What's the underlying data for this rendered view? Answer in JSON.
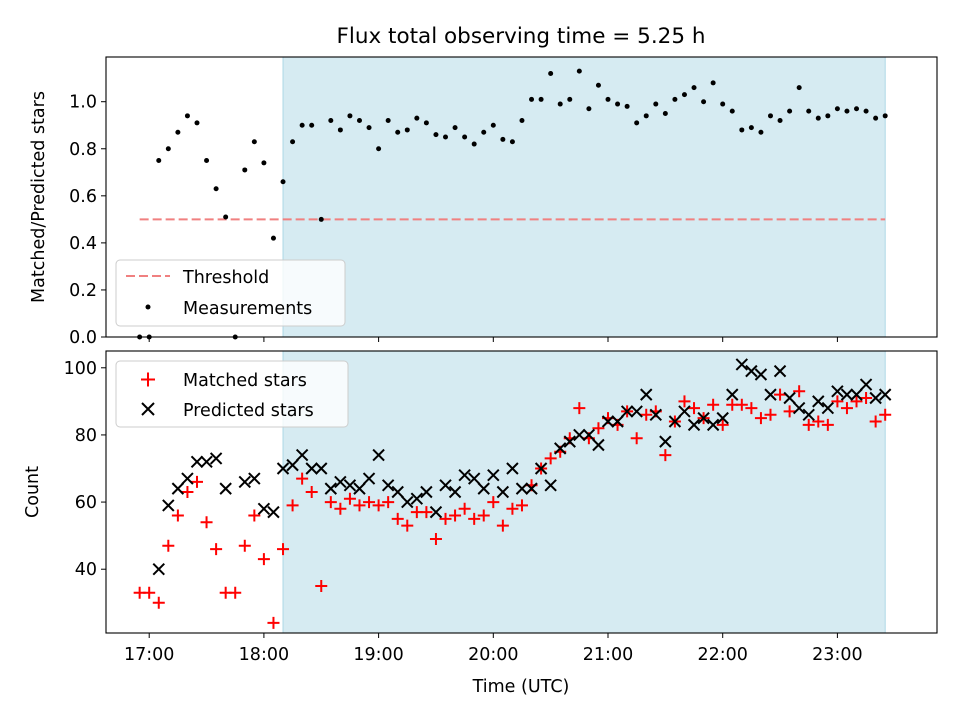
{
  "figure": {
    "title": "Flux total observing time = 5.25 h",
    "xlabel": "Time (UTC)",
    "x_ticks": [
      "17:00",
      "18:00",
      "19:00",
      "20:00",
      "21:00",
      "22:00",
      "23:00"
    ],
    "observing_window": [
      "18:10",
      "23:25"
    ],
    "colors": {
      "window": "#add8e6",
      "threshold": "#f08080",
      "measurements": "#000000",
      "matched": "#ff0000",
      "predicted": "#000000"
    }
  },
  "chart_data": [
    {
      "type": "scatter",
      "ylabel": "Matched/Predicted stars",
      "ylim": [
        0,
        1.19
      ],
      "y_ticks": [
        "0.0",
        "0.2",
        "0.4",
        "0.6",
        "0.8",
        "1.0"
      ],
      "legend_position": "lower-left",
      "threshold": {
        "name": "Threshold",
        "value": 0.5,
        "x_range": [
          "16:55",
          "23:25"
        ]
      },
      "series": [
        {
          "name": "Measurements",
          "points": [
            [
              "16:55",
              0.0
            ],
            [
              "17:00",
              0.0
            ],
            [
              "17:05",
              0.75
            ],
            [
              "17:10",
              0.8
            ],
            [
              "17:15",
              0.87
            ],
            [
              "17:20",
              0.94
            ],
            [
              "17:25",
              0.91
            ],
            [
              "17:30",
              0.75
            ],
            [
              "17:35",
              0.63
            ],
            [
              "17:40",
              0.51
            ],
            [
              "17:45",
              0.0
            ],
            [
              "17:50",
              0.71
            ],
            [
              "17:55",
              0.83
            ],
            [
              "18:00",
              0.74
            ],
            [
              "18:05",
              0.42
            ],
            [
              "18:10",
              0.66
            ],
            [
              "18:15",
              0.83
            ],
            [
              "18:20",
              0.9
            ],
            [
              "18:25",
              0.9
            ],
            [
              "18:30",
              0.5
            ],
            [
              "18:35",
              0.92
            ],
            [
              "18:40",
              0.88
            ],
            [
              "18:45",
              0.94
            ],
            [
              "18:50",
              0.92
            ],
            [
              "18:55",
              0.89
            ],
            [
              "19:00",
              0.8
            ],
            [
              "19:05",
              0.92
            ],
            [
              "19:10",
              0.87
            ],
            [
              "19:15",
              0.88
            ],
            [
              "19:20",
              0.93
            ],
            [
              "19:25",
              0.91
            ],
            [
              "19:30",
              0.86
            ],
            [
              "19:35",
              0.85
            ],
            [
              "19:40",
              0.89
            ],
            [
              "19:45",
              0.85
            ],
            [
              "19:50",
              0.82
            ],
            [
              "19:55",
              0.87
            ],
            [
              "20:00",
              0.9
            ],
            [
              "20:05",
              0.84
            ],
            [
              "20:10",
              0.83
            ],
            [
              "20:15",
              0.92
            ],
            [
              "20:20",
              1.01
            ],
            [
              "20:25",
              1.01
            ],
            [
              "20:30",
              1.12
            ],
            [
              "20:35",
              0.99
            ],
            [
              "20:40",
              1.01
            ],
            [
              "20:45",
              1.13
            ],
            [
              "20:50",
              0.97
            ],
            [
              "20:55",
              1.07
            ],
            [
              "21:00",
              1.01
            ],
            [
              "21:05",
              0.99
            ],
            [
              "21:10",
              0.98
            ],
            [
              "21:15",
              0.91
            ],
            [
              "21:20",
              0.94
            ],
            [
              "21:25",
              0.99
            ],
            [
              "21:30",
              0.95
            ],
            [
              "21:35",
              1.01
            ],
            [
              "21:40",
              1.03
            ],
            [
              "21:45",
              1.06
            ],
            [
              "21:50",
              1.0
            ],
            [
              "21:55",
              1.08
            ],
            [
              "22:00",
              0.99
            ],
            [
              "22:05",
              0.96
            ],
            [
              "22:10",
              0.88
            ],
            [
              "22:15",
              0.89
            ],
            [
              "22:20",
              0.87
            ],
            [
              "22:25",
              0.94
            ],
            [
              "22:30",
              0.92
            ],
            [
              "22:35",
              0.96
            ],
            [
              "22:40",
              1.06
            ],
            [
              "22:45",
              0.96
            ],
            [
              "22:50",
              0.93
            ],
            [
              "22:55",
              0.94
            ],
            [
              "23:00",
              0.97
            ],
            [
              "23:05",
              0.96
            ],
            [
              "23:10",
              0.97
            ],
            [
              "23:15",
              0.96
            ],
            [
              "23:20",
              0.93
            ],
            [
              "23:25",
              0.94
            ]
          ]
        }
      ]
    },
    {
      "type": "scatter",
      "ylabel": "Count",
      "ylim": [
        21,
        105
      ],
      "y_ticks": [
        "40",
        "60",
        "80",
        "100"
      ],
      "legend_position": "upper-left",
      "series": [
        {
          "name": "Matched stars",
          "marker": "plus",
          "points": [
            [
              "16:55",
              33
            ],
            [
              "17:00",
              33
            ],
            [
              "17:05",
              30
            ],
            [
              "17:10",
              47
            ],
            [
              "17:15",
              56
            ],
            [
              "17:20",
              63
            ],
            [
              "17:25",
              66
            ],
            [
              "17:30",
              54
            ],
            [
              "17:35",
              46
            ],
            [
              "17:40",
              33
            ],
            [
              "17:45",
              33
            ],
            [
              "17:50",
              47
            ],
            [
              "17:55",
              56
            ],
            [
              "18:00",
              43
            ],
            [
              "18:05",
              24
            ],
            [
              "18:10",
              46
            ],
            [
              "18:15",
              59
            ],
            [
              "18:20",
              67
            ],
            [
              "18:25",
              63
            ],
            [
              "18:30",
              35
            ],
            [
              "18:35",
              60
            ],
            [
              "18:40",
              58
            ],
            [
              "18:45",
              61
            ],
            [
              "18:50",
              59
            ],
            [
              "18:55",
              60
            ],
            [
              "19:00",
              59
            ],
            [
              "19:05",
              60
            ],
            [
              "19:10",
              55
            ],
            [
              "19:15",
              53
            ],
            [
              "19:20",
              57
            ],
            [
              "19:25",
              57
            ],
            [
              "19:30",
              49
            ],
            [
              "19:35",
              55
            ],
            [
              "19:40",
              56
            ],
            [
              "19:45",
              58
            ],
            [
              "19:50",
              55
            ],
            [
              "19:55",
              56
            ],
            [
              "20:00",
              60
            ],
            [
              "20:05",
              53
            ],
            [
              "20:10",
              58
            ],
            [
              "20:15",
              59
            ],
            [
              "20:20",
              65
            ],
            [
              "20:25",
              70
            ],
            [
              "20:30",
              73
            ],
            [
              "20:35",
              75
            ],
            [
              "20:40",
              79
            ],
            [
              "20:45",
              88
            ],
            [
              "20:50",
              79
            ],
            [
              "20:55",
              82
            ],
            [
              "21:00",
              85
            ],
            [
              "21:05",
              83
            ],
            [
              "21:10",
              87
            ],
            [
              "21:15",
              79
            ],
            [
              "21:20",
              86
            ],
            [
              "21:25",
              87
            ],
            [
              "21:30",
              74
            ],
            [
              "21:35",
              84
            ],
            [
              "21:40",
              90
            ],
            [
              "21:45",
              88
            ],
            [
              "21:50",
              85
            ],
            [
              "21:55",
              89
            ],
            [
              "22:00",
              83
            ],
            [
              "22:05",
              89
            ],
            [
              "22:10",
              89
            ],
            [
              "22:15",
              88
            ],
            [
              "22:20",
              85
            ],
            [
              "22:25",
              86
            ],
            [
              "22:30",
              92
            ],
            [
              "22:35",
              87
            ],
            [
              "22:40",
              93
            ],
            [
              "22:45",
              83
            ],
            [
              "22:50",
              84
            ],
            [
              "22:55",
              83
            ],
            [
              "23:00",
              90
            ],
            [
              "23:05",
              88
            ],
            [
              "23:10",
              90
            ],
            [
              "23:15",
              91
            ],
            [
              "23:20",
              84
            ],
            [
              "23:25",
              86
            ]
          ]
        },
        {
          "name": "Predicted stars",
          "marker": "x",
          "points": [
            [
              "17:05",
              40
            ],
            [
              "17:10",
              59
            ],
            [
              "17:15",
              64
            ],
            [
              "17:20",
              67
            ],
            [
              "17:25",
              72
            ],
            [
              "17:30",
              72
            ],
            [
              "17:35",
              73
            ],
            [
              "17:40",
              64
            ],
            [
              "17:50",
              66
            ],
            [
              "17:55",
              67
            ],
            [
              "18:00",
              58
            ],
            [
              "18:05",
              57
            ],
            [
              "18:10",
              70
            ],
            [
              "18:15",
              71
            ],
            [
              "18:20",
              74
            ],
            [
              "18:25",
              70
            ],
            [
              "18:30",
              70
            ],
            [
              "18:35",
              64
            ],
            [
              "18:40",
              66
            ],
            [
              "18:45",
              65
            ],
            [
              "18:50",
              64
            ],
            [
              "18:55",
              67
            ],
            [
              "19:00",
              74
            ],
            [
              "19:05",
              65
            ],
            [
              "19:10",
              63
            ],
            [
              "19:15",
              60
            ],
            [
              "19:20",
              61
            ],
            [
              "19:25",
              63
            ],
            [
              "19:30",
              57
            ],
            [
              "19:35",
              65
            ],
            [
              "19:40",
              63
            ],
            [
              "19:45",
              68
            ],
            [
              "19:50",
              67
            ],
            [
              "19:55",
              64
            ],
            [
              "20:00",
              68
            ],
            [
              "20:05",
              63
            ],
            [
              "20:10",
              70
            ],
            [
              "20:15",
              64
            ],
            [
              "20:20",
              64
            ],
            [
              "20:25",
              70
            ],
            [
              "20:30",
              65
            ],
            [
              "20:35",
              76
            ],
            [
              "20:40",
              78
            ],
            [
              "20:45",
              80
            ],
            [
              "20:50",
              80
            ],
            [
              "20:55",
              77
            ],
            [
              "21:00",
              84
            ],
            [
              "21:05",
              84
            ],
            [
              "21:10",
              87
            ],
            [
              "21:15",
              87
            ],
            [
              "21:20",
              92
            ],
            [
              "21:25",
              86
            ],
            [
              "21:30",
              78
            ],
            [
              "21:35",
              84
            ],
            [
              "21:40",
              87
            ],
            [
              "21:45",
              83
            ],
            [
              "21:50",
              85
            ],
            [
              "21:55",
              83
            ],
            [
              "22:00",
              85
            ],
            [
              "22:05",
              92
            ],
            [
              "22:10",
              101
            ],
            [
              "22:15",
              99
            ],
            [
              "22:20",
              98
            ],
            [
              "22:25",
              92
            ],
            [
              "22:30",
              99
            ],
            [
              "22:35",
              91
            ],
            [
              "22:40",
              88
            ],
            [
              "22:45",
              86
            ],
            [
              "22:50",
              90
            ],
            [
              "22:55",
              88
            ],
            [
              "23:00",
              93
            ],
            [
              "23:05",
              92
            ],
            [
              "23:10",
              92
            ],
            [
              "23:15",
              95
            ],
            [
              "23:20",
              91
            ],
            [
              "23:25",
              92
            ]
          ]
        }
      ]
    }
  ]
}
